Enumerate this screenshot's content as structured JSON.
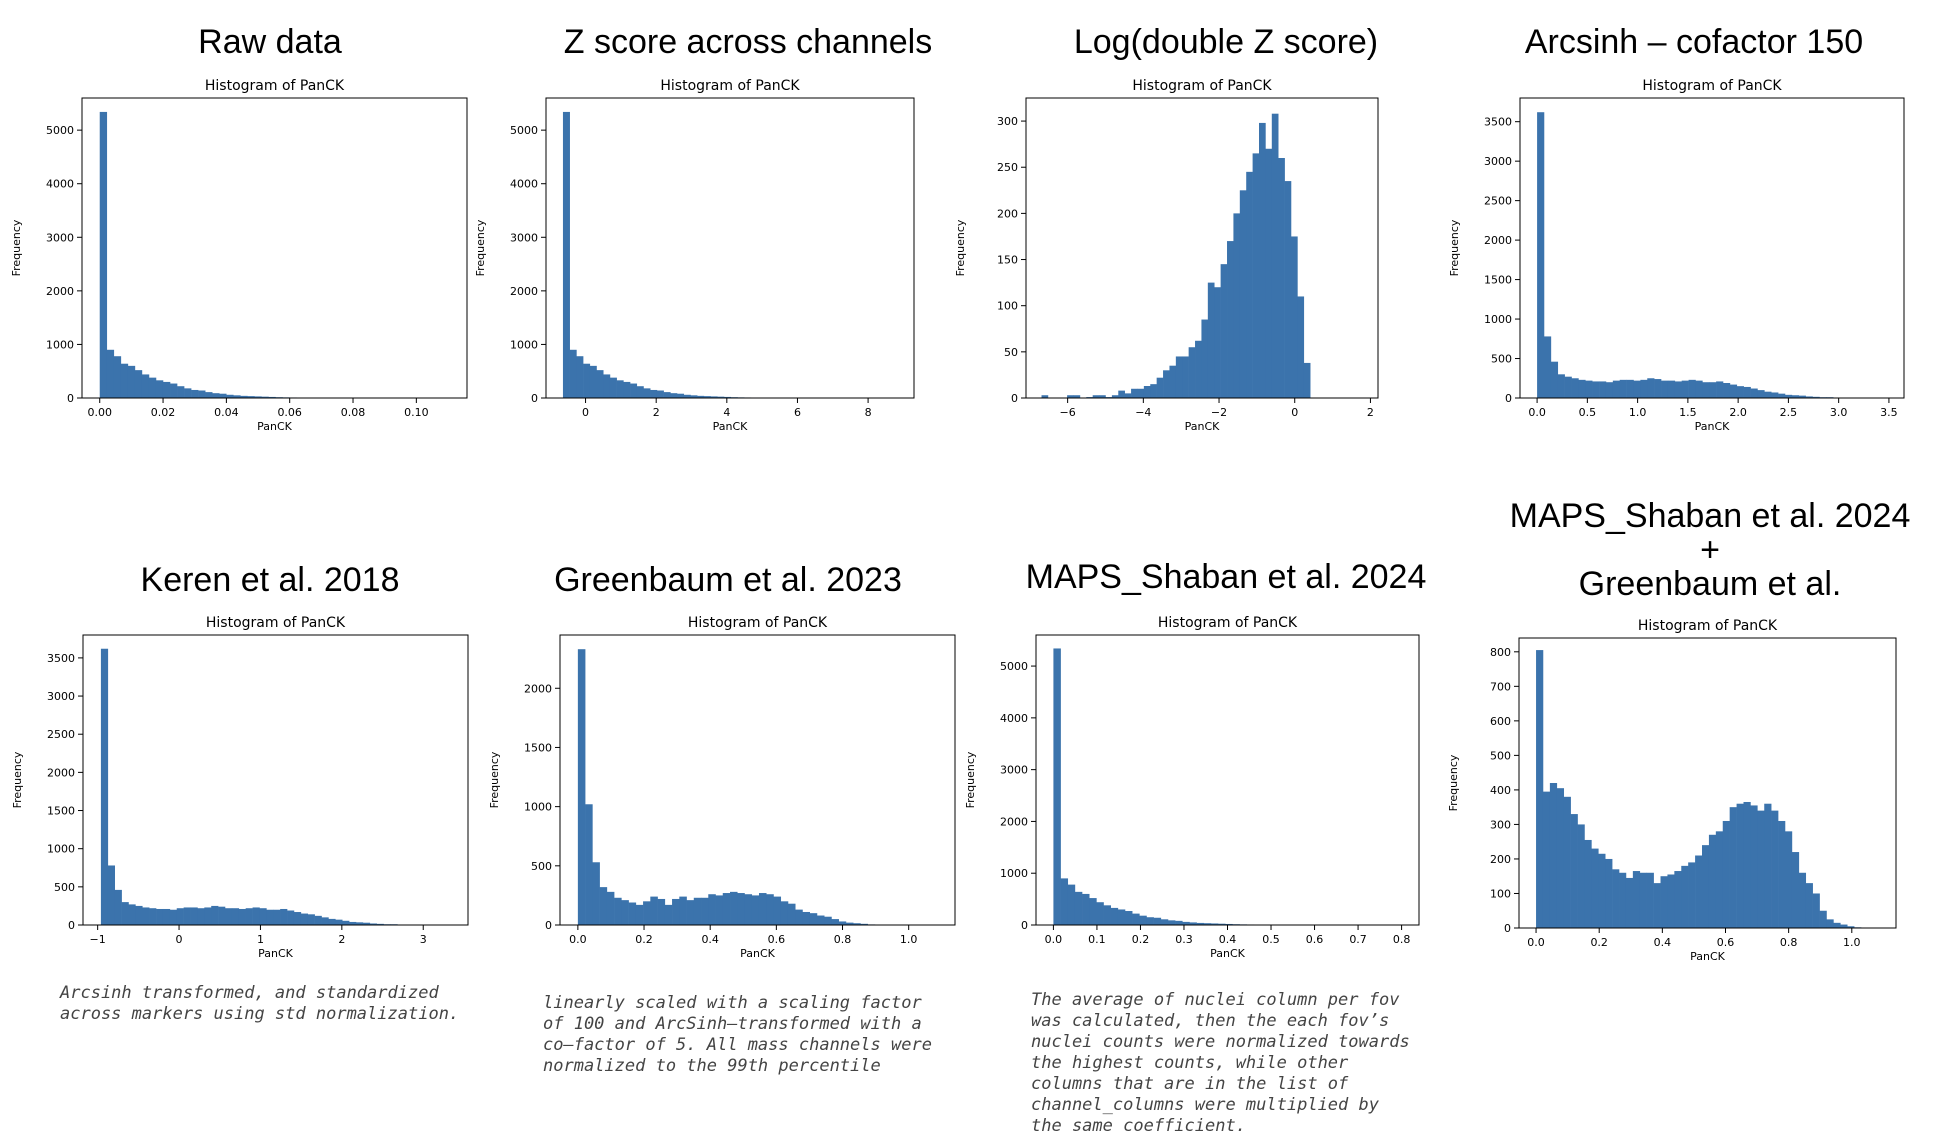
{
  "colors": {
    "bar": "#3b73ac",
    "axis": "#000000",
    "caption": "#444444"
  },
  "panels": [
    {
      "heading": [
        "Raw data"
      ],
      "caption": [],
      "chart_data": {
        "type": "bar",
        "title": "Histogram of PanCK",
        "xlabel": "PanCK",
        "ylabel": "Frequency",
        "xlim": [
          -0.0056,
          0.116
        ],
        "ylim": [
          0,
          5600
        ],
        "xticks": [
          0.0,
          0.02,
          0.04,
          0.06,
          0.08,
          0.1
        ],
        "xticklabels": [
          "0.00",
          "0.02",
          "0.04",
          "0.06",
          "0.08",
          "0.10"
        ],
        "yticks": [
          0,
          1000,
          2000,
          3000,
          4000,
          5000
        ],
        "yticklabels": [
          "0",
          "1000",
          "2000",
          "3000",
          "4000",
          "5000"
        ],
        "x_start": 0.0,
        "bin_width": 0.00222,
        "values": [
          5340,
          900,
          780,
          640,
          600,
          520,
          440,
          380,
          330,
          300,
          270,
          220,
          180,
          150,
          140,
          110,
          90,
          80,
          60,
          50,
          40,
          35,
          30,
          25,
          20,
          15,
          12,
          10,
          8,
          6,
          5,
          5,
          4,
          3,
          3,
          2,
          2,
          2,
          1,
          1,
          1,
          1,
          1,
          0,
          0,
          0,
          0,
          0,
          1,
          0
        ]
      }
    },
    {
      "heading": [
        "Z score across channels"
      ],
      "caption": [],
      "chart_data": {
        "type": "bar",
        "title": "Histogram of PanCK",
        "xlabel": "PanCK",
        "ylabel": "Frequency",
        "xlim": [
          -1.12,
          9.3
        ],
        "ylim": [
          0,
          5600
        ],
        "xticks": [
          0,
          2,
          4,
          6,
          8
        ],
        "xticklabels": [
          "0",
          "2",
          "4",
          "6",
          "8"
        ],
        "yticks": [
          0,
          1000,
          2000,
          3000,
          4000,
          5000
        ],
        "yticklabels": [
          "0",
          "1000",
          "2000",
          "3000",
          "4000",
          "5000"
        ],
        "x_start": -0.64,
        "bin_width": 0.19,
        "values": [
          5340,
          900,
          780,
          640,
          600,
          520,
          440,
          380,
          330,
          300,
          270,
          220,
          180,
          150,
          140,
          110,
          90,
          80,
          60,
          50,
          40,
          35,
          30,
          25,
          20,
          15,
          12,
          10,
          8,
          6,
          5,
          5,
          4,
          3,
          3,
          2,
          2,
          2,
          1,
          1,
          1,
          1,
          1,
          0,
          0,
          0,
          0,
          0,
          1,
          0
        ]
      }
    },
    {
      "heading": [
        "Log(double Z score)"
      ],
      "caption": [],
      "chart_data": {
        "type": "bar",
        "title": "Histogram of PanCK",
        "xlabel": "PanCK",
        "ylabel": "Frequency",
        "xlim": [
          -7.1,
          2.2
        ],
        "ylim": [
          0,
          325
        ],
        "xticks": [
          -6,
          -4,
          -2,
          0,
          2
        ],
        "xticklabels": [
          "−6",
          "−4",
          "−2",
          "0",
          "2"
        ],
        "yticks": [
          0,
          50,
          100,
          150,
          200,
          250,
          300
        ],
        "yticklabels": [
          "0",
          "50",
          "100",
          "150",
          "200",
          "250",
          "300"
        ],
        "x_start": -6.69,
        "bin_width": 0.169,
        "values": [
          3,
          0,
          0,
          0,
          3,
          3,
          0,
          1,
          3,
          3,
          1,
          3,
          8,
          5,
          10,
          10,
          13,
          15,
          22,
          30,
          35,
          45,
          45,
          55,
          62,
          85,
          125,
          120,
          145,
          170,
          200,
          225,
          245,
          265,
          298,
          270,
          308,
          260,
          235,
          175,
          110,
          38
        ]
      }
    },
    {
      "heading": [
        "Arcsinh – cofactor 150"
      ],
      "caption": [],
      "chart_data": {
        "type": "bar",
        "title": "Histogram of PanCK",
        "xlabel": "PanCK",
        "ylabel": "Frequency",
        "xlim": [
          -0.17,
          3.65
        ],
        "ylim": [
          0,
          3800
        ],
        "xticks": [
          0.0,
          0.5,
          1.0,
          1.5,
          2.0,
          2.5,
          3.0,
          3.5
        ],
        "xticklabels": [
          "0.0",
          "0.5",
          "1.0",
          "1.5",
          "2.0",
          "2.5",
          "3.0",
          "3.5"
        ],
        "yticks": [
          0,
          500,
          1000,
          1500,
          2000,
          2500,
          3000,
          3500
        ],
        "yticklabels": [
          "0",
          "500",
          "1000",
          "1500",
          "2000",
          "2500",
          "3000",
          "3500"
        ],
        "x_start": 0.0,
        "bin_width": 0.0685,
        "values": [
          3620,
          780,
          460,
          300,
          270,
          250,
          230,
          220,
          210,
          210,
          200,
          220,
          230,
          230,
          220,
          230,
          250,
          240,
          220,
          220,
          210,
          220,
          230,
          220,
          200,
          200,
          210,
          190,
          170,
          150,
          140,
          120,
          100,
          80,
          70,
          55,
          40,
          35,
          30,
          20,
          15,
          10,
          10,
          5,
          5,
          3,
          2,
          1
        ]
      }
    },
    {
      "heading": [
        "Keren et al. 2018"
      ],
      "caption": [
        "Arcsinh transformed, and standardized",
        "across markers using std normalization."
      ],
      "chart_data": {
        "type": "bar",
        "title": "Histogram of PanCK",
        "xlabel": "PanCK",
        "ylabel": "Frequency",
        "xlim": [
          -1.18,
          3.55
        ],
        "ylim": [
          0,
          3800
        ],
        "xticks": [
          -1,
          0,
          1,
          2,
          3
        ],
        "xticklabels": [
          "−1",
          "0",
          "1",
          "2",
          "3"
        ],
        "yticks": [
          0,
          500,
          1000,
          1500,
          2000,
          2500,
          3000,
          3500
        ],
        "yticklabels": [
          "0",
          "500",
          "1000",
          "1500",
          "2000",
          "2500",
          "3000",
          "3500"
        ],
        "x_start": -0.96,
        "bin_width": 0.0847,
        "values": [
          3620,
          780,
          460,
          300,
          270,
          250,
          230,
          220,
          210,
          210,
          200,
          220,
          230,
          230,
          220,
          230,
          250,
          240,
          220,
          220,
          210,
          220,
          230,
          220,
          200,
          200,
          210,
          190,
          170,
          150,
          140,
          120,
          100,
          80,
          70,
          55,
          40,
          35,
          30,
          20,
          15,
          10,
          10,
          5,
          5,
          3,
          2,
          1
        ]
      }
    },
    {
      "heading": [
        "Greenbaum et al. 2023"
      ],
      "caption": [
        "linearly scaled with a scaling factor",
        "of 100 and ArcSinh–transformed with a",
        "co–factor of 5. All mass channels were",
        "normalized to the 99th percentile"
      ],
      "chart_data": {
        "type": "bar",
        "title": "Histogram of PanCK",
        "xlabel": "PanCK",
        "ylabel": "Frequency",
        "xlim": [
          -0.054,
          1.14
        ],
        "ylim": [
          0,
          2450
        ],
        "xticks": [
          0.0,
          0.2,
          0.4,
          0.6,
          0.8,
          1.0
        ],
        "xticklabels": [
          "0.0",
          "0.2",
          "0.4",
          "0.6",
          "0.8",
          "1.0"
        ],
        "yticks": [
          0,
          500,
          1000,
          1500,
          2000
        ],
        "yticklabels": [
          "0",
          "500",
          "1000",
          "1500",
          "2000"
        ],
        "x_start": 0.0,
        "bin_width": 0.0219,
        "values": [
          2330,
          1020,
          530,
          320,
          280,
          230,
          210,
          190,
          170,
          200,
          240,
          220,
          170,
          220,
          240,
          210,
          230,
          230,
          260,
          250,
          270,
          280,
          270,
          260,
          250,
          270,
          260,
          240,
          200,
          180,
          130,
          110,
          100,
          80,
          70,
          50,
          30,
          20,
          15,
          10,
          5,
          3,
          2,
          1,
          1,
          1,
          1,
          0
        ]
      }
    },
    {
      "heading": [
        "MAPS_Shaban et al. 2024"
      ],
      "caption": [
        "The average of nuclei column per fov",
        "was calculated, then the each fov’s",
        "nuclei counts were normalized towards",
        "the highest counts, while other",
        "columns that are in the list of",
        "channel_columns were multiplied by",
        "the same coefficient."
      ],
      "chart_data": {
        "type": "bar",
        "title": "Histogram of PanCK",
        "xlabel": "PanCK",
        "ylabel": "Frequency",
        "xlim": [
          -0.04,
          0.84
        ],
        "ylim": [
          0,
          5600
        ],
        "xticks": [
          0.0,
          0.1,
          0.2,
          0.3,
          0.4,
          0.5,
          0.6,
          0.7,
          0.8
        ],
        "xticklabels": [
          "0.0",
          "0.1",
          "0.2",
          "0.3",
          "0.4",
          "0.5",
          "0.6",
          "0.7",
          "0.8"
        ],
        "yticks": [
          0,
          1000,
          2000,
          3000,
          4000,
          5000
        ],
        "yticklabels": [
          "0",
          "1000",
          "2000",
          "3000",
          "4000",
          "5000"
        ],
        "x_start": 0.0,
        "bin_width": 0.01645,
        "values": [
          5340,
          900,
          780,
          640,
          600,
          520,
          440,
          380,
          330,
          300,
          270,
          220,
          180,
          150,
          140,
          110,
          90,
          80,
          60,
          50,
          40,
          35,
          30,
          25,
          20,
          15,
          12,
          10,
          8,
          6,
          5,
          5,
          4,
          3,
          3,
          2,
          2,
          2,
          1,
          1,
          1,
          1,
          1,
          0,
          0,
          0,
          0,
          0,
          1,
          0
        ]
      }
    },
    {
      "heading": [
        "MAPS_Shaban et al. 2024",
        "+",
        "Greenbaum et al."
      ],
      "caption": [],
      "chart_data": {
        "type": "bar",
        "title": "Histogram of PanCK",
        "xlabel": "PanCK",
        "ylabel": "Frequency",
        "xlim": [
          -0.054,
          1.14
        ],
        "ylim": [
          0,
          840
        ],
        "xticks": [
          0.0,
          0.2,
          0.4,
          0.6,
          0.8,
          1.0
        ],
        "xticklabels": [
          "0.0",
          "0.2",
          "0.4",
          "0.6",
          "0.8",
          "1.0"
        ],
        "yticks": [
          0,
          100,
          200,
          300,
          400,
          500,
          600,
          700,
          800
        ],
        "yticklabels": [
          "0",
          "100",
          "200",
          "300",
          "400",
          "500",
          "600",
          "700",
          "800"
        ],
        "x_start": 0.0,
        "bin_width": 0.0219,
        "values": [
          805,
          395,
          420,
          405,
          380,
          330,
          300,
          255,
          230,
          215,
          200,
          170,
          160,
          145,
          165,
          160,
          160,
          130,
          150,
          155,
          165,
          180,
          190,
          210,
          240,
          270,
          280,
          310,
          350,
          360,
          365,
          355,
          340,
          360,
          340,
          310,
          280,
          220,
          160,
          130,
          100,
          50,
          25,
          15,
          10,
          5,
          2,
          1
        ]
      }
    }
  ]
}
